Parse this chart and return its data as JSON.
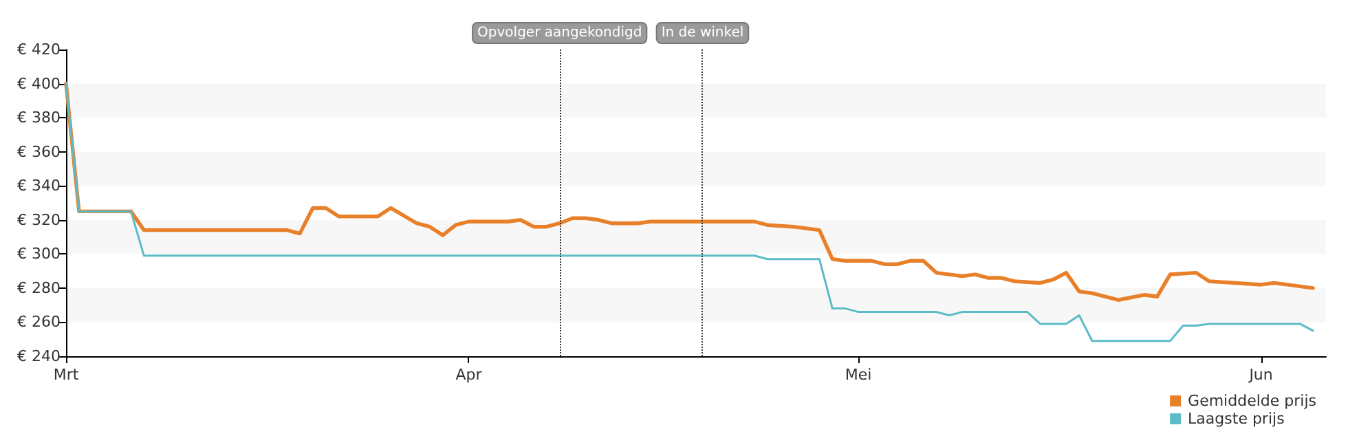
{
  "chart_data": {
    "type": "line",
    "xlim": [
      "--03-01",
      "--06-06"
    ],
    "xticks": [
      {
        "value": "--03-01",
        "label": "Mrt"
      },
      {
        "value": "--04-01",
        "label": "Apr"
      },
      {
        "value": "--05-01",
        "label": "Mei"
      },
      {
        "value": "--06-01",
        "label": "Jun"
      }
    ],
    "ylim": [
      240,
      420
    ],
    "yticks": [
      {
        "value": 240,
        "label": "€ 240"
      },
      {
        "value": 260,
        "label": "€ 260"
      },
      {
        "value": 280,
        "label": "€ 280"
      },
      {
        "value": 300,
        "label": "€ 300"
      },
      {
        "value": 320,
        "label": "€ 320"
      },
      {
        "value": 340,
        "label": "€ 340"
      },
      {
        "value": 360,
        "label": "€ 360"
      },
      {
        "value": 380,
        "label": "€ 380"
      },
      {
        "value": 400,
        "label": "€ 400"
      },
      {
        "value": 420,
        "label": "€ 420"
      }
    ],
    "legend": "bottom right",
    "marker": "none",
    "line_style": "solid",
    "ref_lines": [
      {
        "axis": "x",
        "value": "--04-08",
        "label": "Opvolger aangekondigd",
        "line_style": "dotted",
        "color": "#333333"
      },
      {
        "axis": "x",
        "value": "--04-19",
        "label": "In de winkel",
        "line_style": "dotted",
        "color": "#333333"
      }
    ],
    "series": [
      {
        "name": "Gemiddelde prijs",
        "color": "#e8802a",
        "x": [
          "--03-01",
          "--03-02",
          "--03-06",
          "--03-07",
          "--03-18",
          "--03-19",
          "--03-20",
          "--03-21",
          "--03-22",
          "--03-25",
          "--03-26",
          "--03-28",
          "--03-29",
          "--03-30",
          "--03-31",
          "--04-01",
          "--04-04",
          "--04-05",
          "--04-06",
          "--04-07",
          "--04-08",
          "--04-09",
          "--04-10",
          "--04-11",
          "--04-12",
          "--04-14",
          "--04-15",
          "--04-23",
          "--04-24",
          "--04-26",
          "--04-27",
          "--04-28",
          "--04-29",
          "--04-30",
          "--05-02",
          "--05-03",
          "--05-04",
          "--05-05",
          "--05-06",
          "--05-07",
          "--05-08",
          "--05-09",
          "--05-10",
          "--05-11",
          "--05-12",
          "--05-13",
          "--05-15",
          "--05-16",
          "--05-17",
          "--05-18",
          "--05-19",
          "--05-21",
          "--05-23",
          "--05-24",
          "--05-25",
          "--05-27",
          "--05-28",
          "--06-01",
          "--06-02",
          "--06-03",
          "--06-04",
          "--06-05"
        ],
        "values": [
          400,
          325,
          325,
          314,
          314,
          312,
          327,
          327,
          322,
          322,
          327,
          318,
          316,
          311,
          317,
          319,
          319,
          320,
          316,
          316,
          318,
          321,
          321,
          320,
          318,
          318,
          319,
          319,
          317,
          316,
          315,
          314,
          297,
          296,
          296,
          294,
          294,
          296,
          296,
          289,
          288,
          287,
          288,
          286,
          286,
          284,
          283,
          285,
          289,
          278,
          277,
          273,
          276,
          275,
          288,
          289,
          284,
          282,
          283,
          282,
          281,
          280
        ]
      },
      {
        "name": "Laagste prijs",
        "color": "#5bbcc8",
        "x": [
          "--03-01",
          "--03-02",
          "--03-06",
          "--03-07",
          "--04-23",
          "--04-24",
          "--04-28",
          "--04-29",
          "--04-30",
          "--05-01",
          "--05-07",
          "--05-08",
          "--05-09",
          "--05-14",
          "--05-15",
          "--05-17",
          "--05-18",
          "--05-19",
          "--05-25",
          "--05-26",
          "--05-27",
          "--05-28",
          "--06-04",
          "--06-05"
        ],
        "values": [
          400,
          325,
          325,
          299,
          299,
          297,
          297,
          268,
          268,
          266,
          266,
          264,
          266,
          266,
          259,
          259,
          264,
          249,
          249,
          258,
          258,
          259,
          259,
          255
        ]
      }
    ]
  }
}
